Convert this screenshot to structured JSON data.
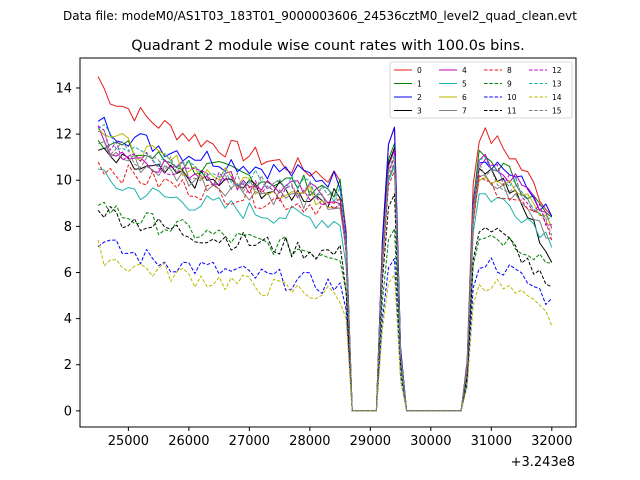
{
  "suptitle": "Data file: modeM0/AS1T03_183T01_9000003606_24536cztM0_level2_quad_clean.evt",
  "chart_data": {
    "type": "line",
    "title": "Quadrant 2 module wise count rates with 100.0s bins.",
    "xlabel": "",
    "ylabel": "",
    "x_offset_label": "+3.243e8",
    "xlim": [
      24200,
      32400
    ],
    "ylim": [
      -0.7,
      15.3
    ],
    "x_ticks": [
      25000,
      26000,
      27000,
      28000,
      29000,
      30000,
      31000,
      32000
    ],
    "x_tick_labels": [
      "25000",
      "26000",
      "27000",
      "28000",
      "29000",
      "30000",
      "31000",
      "32000"
    ],
    "y_ticks": [
      0,
      2,
      4,
      6,
      8,
      10,
      12,
      14
    ],
    "y_tick_labels": [
      "0",
      "2",
      "4",
      "6",
      "8",
      "10",
      "12",
      "14"
    ],
    "grid": false,
    "legend_position": "upper-right",
    "legend_columns": 4,
    "segments": [
      {
        "start": 24500,
        "end": 28600,
        "kind": "data"
      },
      {
        "start": 28600,
        "end": 28700,
        "kind": "drop"
      },
      {
        "start": 28700,
        "end": 29200,
        "kind": "zero"
      },
      {
        "start": 29200,
        "end": 29400,
        "kind": "peak"
      },
      {
        "start": 29400,
        "end": 29600,
        "kind": "drop"
      },
      {
        "start": 29600,
        "end": 30600,
        "kind": "zero"
      },
      {
        "start": 30600,
        "end": 32000,
        "kind": "data"
      }
    ],
    "series": [
      {
        "name": "0",
        "color": "#e41a1c",
        "dash": "solid",
        "start": 14.5,
        "end": 10.1,
        "spike": 12.3,
        "post_start": 12.0,
        "post_end": 8.5
      },
      {
        "name": "1",
        "color": "#008000",
        "dash": "solid",
        "start": 12.1,
        "end": 9.6,
        "spike": 11.6,
        "post_start": 11.0,
        "post_end": 8.1
      },
      {
        "name": "2",
        "color": "#0000ff",
        "dash": "solid",
        "start": 12.8,
        "end": 10.0,
        "spike": 12.3,
        "post_start": 11.0,
        "post_end": 8.3
      },
      {
        "name": "3",
        "color": "#000000",
        "dash": "solid",
        "start": 11.3,
        "end": 9.2,
        "spike": 11.4,
        "post_start": 10.6,
        "post_end": 6.5
      },
      {
        "name": "4",
        "color": "#c000c0",
        "dash": "solid",
        "start": 12.0,
        "end": 9.3,
        "spike": 11.3,
        "post_start": 10.8,
        "post_end": 8.2
      },
      {
        "name": "5",
        "color": "#20b2aa",
        "dash": "solid",
        "start": 10.3,
        "end": 8.2,
        "spike": 10.6,
        "post_start": 9.4,
        "post_end": 7.4
      },
      {
        "name": "6",
        "color": "#bbbb00",
        "dash": "solid",
        "start": 12.6,
        "end": 9.1,
        "spike": 11.0,
        "post_start": 10.3,
        "post_end": 8.0
      },
      {
        "name": "7",
        "color": "#808080",
        "dash": "solid",
        "start": 11.8,
        "end": 8.9,
        "spike": 10.7,
        "post_start": 10.0,
        "post_end": 7.5
      },
      {
        "name": "8",
        "color": "#e41a1c",
        "dash": "dashed",
        "start": 10.9,
        "end": 8.8,
        "spike": 10.4,
        "post_start": 9.9,
        "post_end": 7.6
      },
      {
        "name": "9",
        "color": "#008000",
        "dash": "dashed",
        "start": 9.2,
        "end": 6.8,
        "spike": 7.9,
        "post_start": 7.7,
        "post_end": 6.4
      },
      {
        "name": "10",
        "color": "#0000ff",
        "dash": "dashed",
        "start": 7.5,
        "end": 5.4,
        "spike": 6.6,
        "post_start": 6.5,
        "post_end": 4.7
      },
      {
        "name": "11",
        "color": "#000000",
        "dash": "dashed",
        "start": 9.0,
        "end": 6.8,
        "spike": 9.4,
        "post_start": 8.0,
        "post_end": 5.0
      },
      {
        "name": "12",
        "color": "#c000c0",
        "dash": "dashed",
        "start": 12.2,
        "end": 9.0,
        "spike": 11.0,
        "post_start": 10.6,
        "post_end": 8.1
      },
      {
        "name": "13",
        "color": "#20b2aa",
        "dash": "dashed",
        "start": 12.4,
        "end": 9.4,
        "spike": 11.1,
        "post_start": 10.7,
        "post_end": 8.0
      },
      {
        "name": "14",
        "color": "#bbbb00",
        "dash": "dashed",
        "start": 7.0,
        "end": 5.0,
        "spike": 5.9,
        "post_start": 5.6,
        "post_end": 3.9
      },
      {
        "name": "15",
        "color": "#808080",
        "dash": "dashed",
        "start": 12.1,
        "end": 9.2,
        "spike": 10.8,
        "post_start": 10.4,
        "post_end": 7.8
      }
    ]
  }
}
